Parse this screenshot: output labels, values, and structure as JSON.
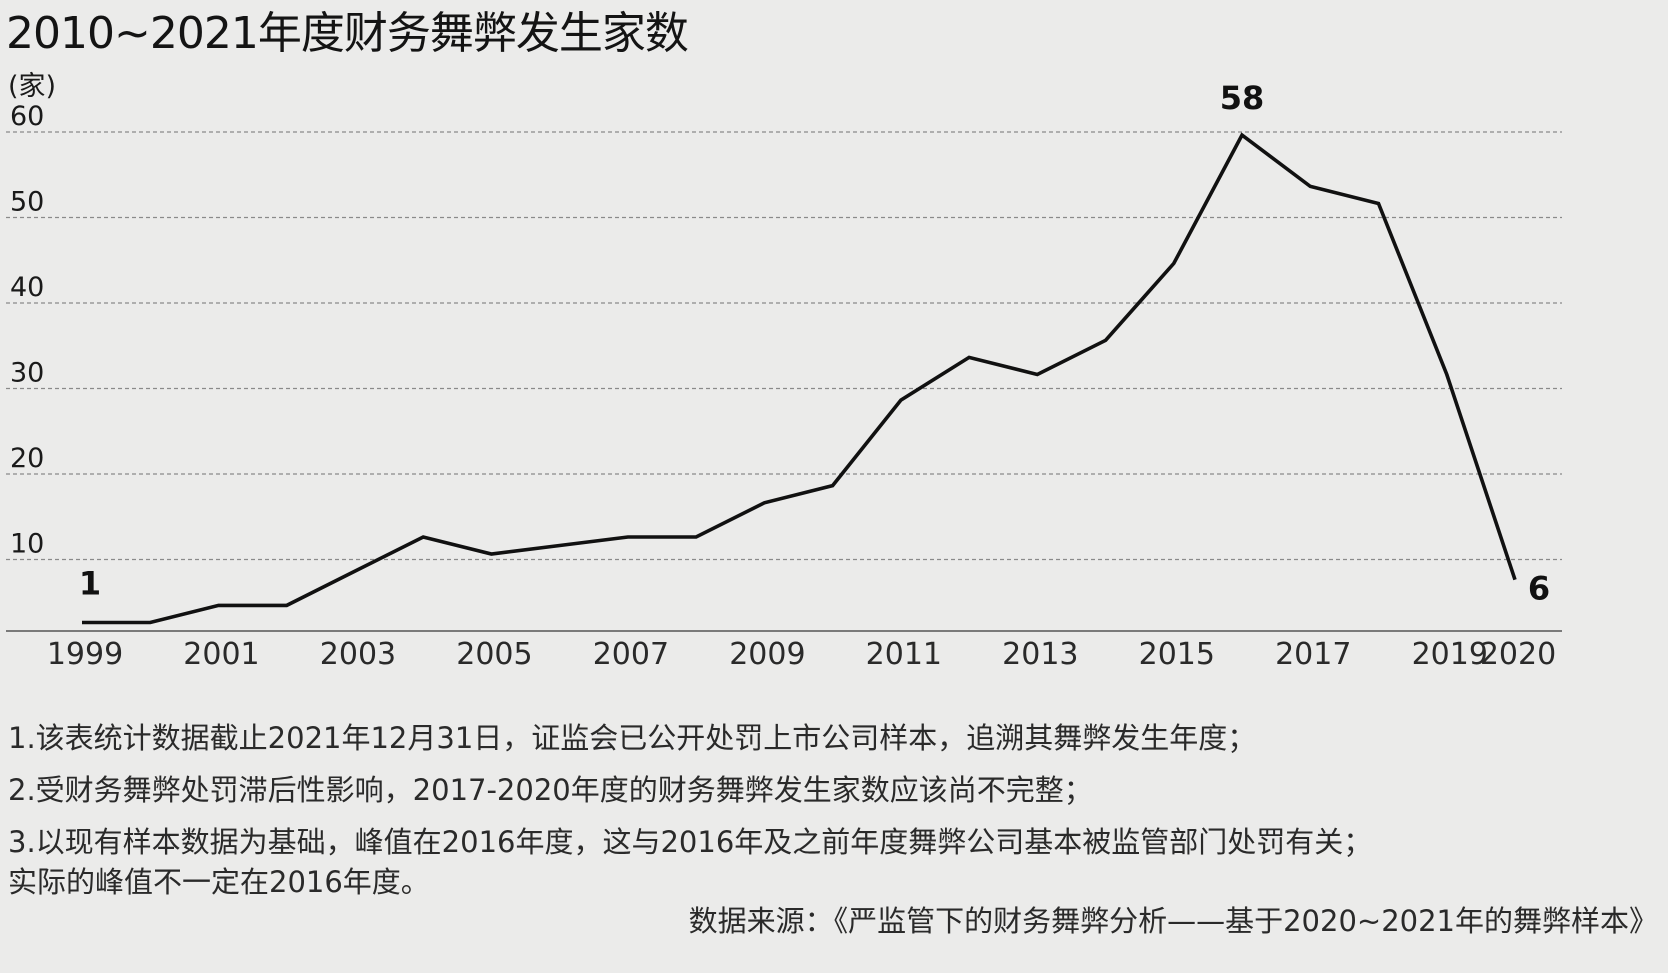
{
  "title": "2010~2021年度财务舞弊发生家数",
  "chart_data": {
    "type": "line",
    "unit_label": "(家)",
    "x": [
      1999,
      2000,
      2001,
      2002,
      2003,
      2004,
      2005,
      2006,
      2007,
      2008,
      2009,
      2010,
      2011,
      2012,
      2013,
      2014,
      2015,
      2016,
      2017,
      2018,
      2019,
      2020
    ],
    "values": [
      1,
      1,
      3,
      3,
      7,
      11,
      9,
      10,
      11,
      11,
      15,
      17,
      27,
      32,
      30,
      34,
      43,
      58,
      52,
      50,
      30,
      6
    ],
    "x_tick_labels": [
      "1999",
      "2001",
      "2003",
      "2005",
      "2007",
      "2009",
      "2011",
      "2013",
      "2015",
      "2017",
      "2019",
      "2020"
    ],
    "x_tick_values": [
      1999,
      2001,
      2003,
      2005,
      2007,
      2009,
      2011,
      2013,
      2015,
      2017,
      2019,
      2020
    ],
    "y_ticks": [
      10,
      20,
      30,
      40,
      50,
      60
    ],
    "ylim": [
      0,
      60
    ],
    "grid": true,
    "grid_style": "dashed-horizontal",
    "line_color": "#111111",
    "annotations": [
      {
        "x": 1999,
        "value": 1,
        "label": "1"
      },
      {
        "x": 2016,
        "value": 58,
        "label": "58"
      },
      {
        "x": 2020,
        "value": 6,
        "label": "6"
      }
    ]
  },
  "notes": [
    "1.该表统计数据截止2021年12月31日，证监会已公开处罚上市公司样本，追溯其舞弊发生年度；",
    "2.受财务舞弊处罚滞后性影响，2017-2020年度的财务舞弊发生家数应该尚不完整；",
    "3.以现有样本数据为基础，峰值在2016年度，这与2016年及之前年度舞弊公司基本被监管部门处罚有关；",
    "实际的峰值不一定在2016年度。"
  ],
  "source": "数据来源：《严监管下的财务舞弊分析——基于2020~2021年的舞弊样本》"
}
